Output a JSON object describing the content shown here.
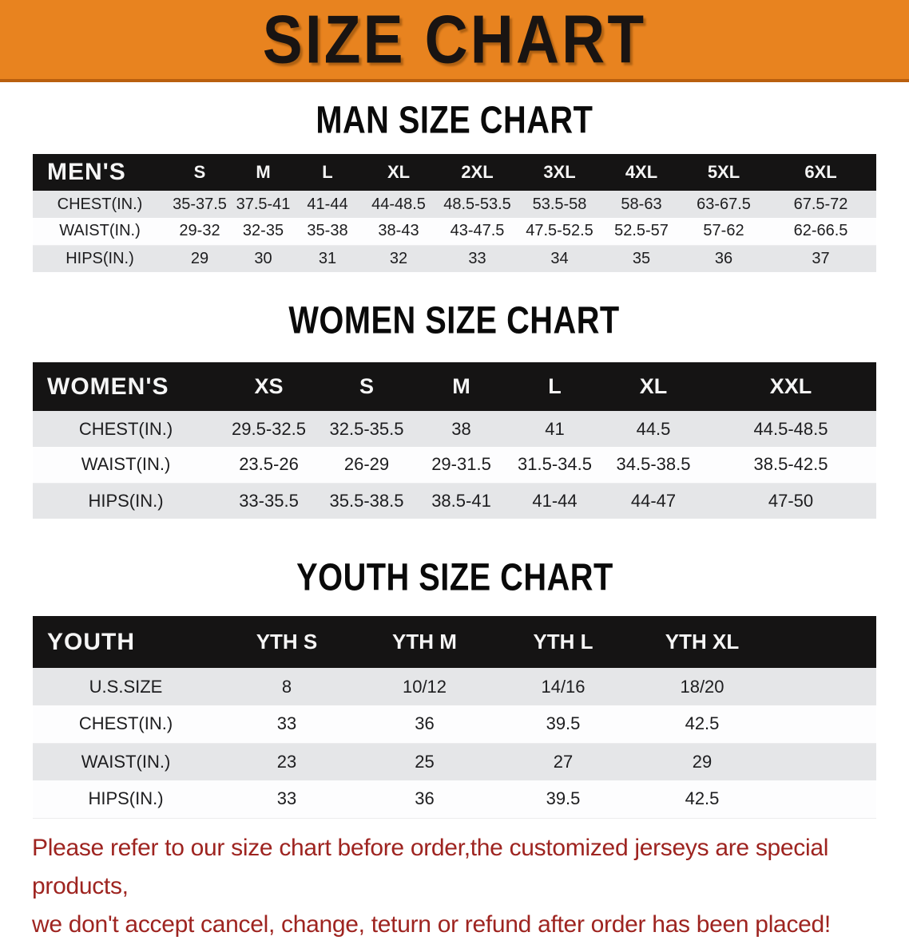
{
  "banner": {
    "title": "SIZE CHART"
  },
  "colors": {
    "banner_orange": "#E8831F",
    "banner_edge": "#B95F0E",
    "table_header_black": "#151414",
    "row_gray": "#E5E6E8",
    "row_white": "#FDFDFE",
    "disclaimer_red": "#9E2420"
  },
  "chart_data": [
    {
      "type": "table",
      "title": "MAN SIZE CHART",
      "corner_label": "MEN'S",
      "columns": [
        "S",
        "M",
        "L",
        "XL",
        "2XL",
        "3XL",
        "4XL",
        "5XL",
        "6XL"
      ],
      "rows": [
        {
          "label": "CHEST(IN.)",
          "values": [
            "35-37.5",
            "37.5-41",
            "41-44",
            "44-48.5",
            "48.5-53.5",
            "53.5-58",
            "58-63",
            "63-67.5",
            "67.5-72"
          ]
        },
        {
          "label": "WAIST(IN.)",
          "values": [
            "29-32",
            "32-35",
            "35-38",
            "38-43",
            "43-47.5",
            "47.5-52.5",
            "52.5-57",
            "57-62",
            "62-66.5"
          ]
        },
        {
          "label": "HIPS(IN.)",
          "values": [
            "29",
            "30",
            "31",
            "32",
            "33",
            "34",
            "35",
            "36",
            "37"
          ]
        }
      ]
    },
    {
      "type": "table",
      "title": "WOMEN SIZE CHART",
      "corner_label": "WOMEN'S",
      "columns": [
        "XS",
        "S",
        "M",
        "L",
        "XL",
        "XXL"
      ],
      "rows": [
        {
          "label": "CHEST(IN.)",
          "values": [
            "29.5-32.5",
            "32.5-35.5",
            "38",
            "41",
            "44.5",
            "44.5-48.5"
          ]
        },
        {
          "label": "WAIST(IN.)",
          "values": [
            "23.5-26",
            "26-29",
            "29-31.5",
            "31.5-34.5",
            "34.5-38.5",
            "38.5-42.5"
          ]
        },
        {
          "label": "HIPS(IN.)",
          "values": [
            "33-35.5",
            "35.5-38.5",
            "38.5-41",
            "41-44",
            "44-47",
            "47-50"
          ]
        }
      ]
    },
    {
      "type": "table",
      "title": "YOUTH SIZE CHART",
      "corner_label": "YOUTH",
      "columns": [
        "YTH S",
        "YTH M",
        "YTH L",
        "YTH XL"
      ],
      "rows": [
        {
          "label": "U.S.SIZE",
          "values": [
            "8",
            "10/12",
            "14/16",
            "18/20"
          ]
        },
        {
          "label": "CHEST(IN.)",
          "values": [
            "33",
            "36",
            "39.5",
            "42.5"
          ]
        },
        {
          "label": "WAIST(IN.)",
          "values": [
            "23",
            "25",
            "27",
            "29"
          ]
        },
        {
          "label": "HIPS(IN.)",
          "values": [
            "33",
            "36",
            "39.5",
            "42.5"
          ]
        }
      ]
    }
  ],
  "disclaimer": {
    "lines": [
      "Please refer to our size chart before order,the customized jerseys are special products,",
      "we don't accept cancel, change, teturn or refund after order has been placed!"
    ]
  }
}
